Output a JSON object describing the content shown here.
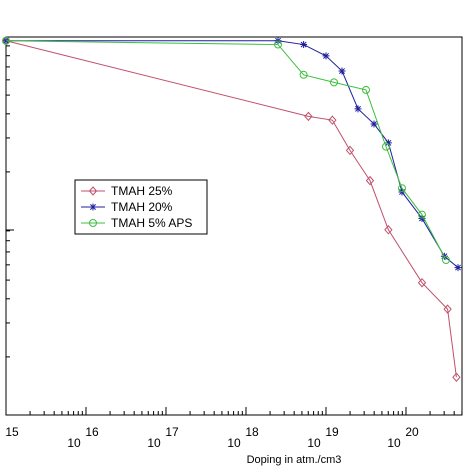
{
  "chart_data": {
    "type": "line",
    "xlabel": "Doping in atm./cm3",
    "ylabel": "",
    "title": "",
    "x_tick_labels": [
      {
        "x": 15,
        "exp": "15",
        "base": ""
      },
      {
        "x": 16,
        "exp": "16",
        "base": "10"
      },
      {
        "x": 17,
        "exp": "17",
        "base": "10"
      },
      {
        "x": 18,
        "exp": "18",
        "base": "10"
      },
      {
        "x": 19,
        "exp": "19",
        "base": "10"
      },
      {
        "x": 20,
        "exp": "20",
        "base": "10"
      }
    ],
    "xlim": [
      15,
      20.7
    ],
    "ylim": [
      0,
      1
    ],
    "legend": "center-left",
    "grid": false,
    "series": [
      {
        "name": "TMAH 25%",
        "color": "#c0506a",
        "marker": "diamond",
        "points": [
          [
            15.0,
            0.99
          ],
          [
            18.78,
            0.79
          ],
          [
            19.08,
            0.78
          ],
          [
            19.3,
            0.7
          ],
          [
            19.55,
            0.62
          ],
          [
            19.78,
            0.49
          ],
          [
            20.2,
            0.35
          ],
          [
            20.52,
            0.28
          ],
          [
            20.63,
            0.1
          ]
        ]
      },
      {
        "name": "TMAH 20%",
        "color": "#1f1fa0",
        "marker": "star",
        "points": [
          [
            15.0,
            0.99
          ],
          [
            18.4,
            0.99
          ],
          [
            18.72,
            0.98
          ],
          [
            19.0,
            0.95
          ],
          [
            19.2,
            0.91
          ],
          [
            19.4,
            0.81
          ],
          [
            19.6,
            0.77
          ],
          [
            19.78,
            0.72
          ],
          [
            19.95,
            0.59
          ],
          [
            20.2,
            0.52
          ],
          [
            20.48,
            0.42
          ],
          [
            20.65,
            0.39
          ]
        ]
      },
      {
        "name": "TMAH 5% APS",
        "color": "#3cbf3c",
        "marker": "circle",
        "points": [
          [
            15.0,
            0.99
          ],
          [
            18.4,
            0.98
          ],
          [
            18.72,
            0.9
          ],
          [
            19.1,
            0.88
          ],
          [
            19.5,
            0.86
          ],
          [
            19.75,
            0.71
          ],
          [
            19.95,
            0.6
          ],
          [
            20.2,
            0.53
          ],
          [
            20.5,
            0.41
          ]
        ]
      }
    ]
  }
}
